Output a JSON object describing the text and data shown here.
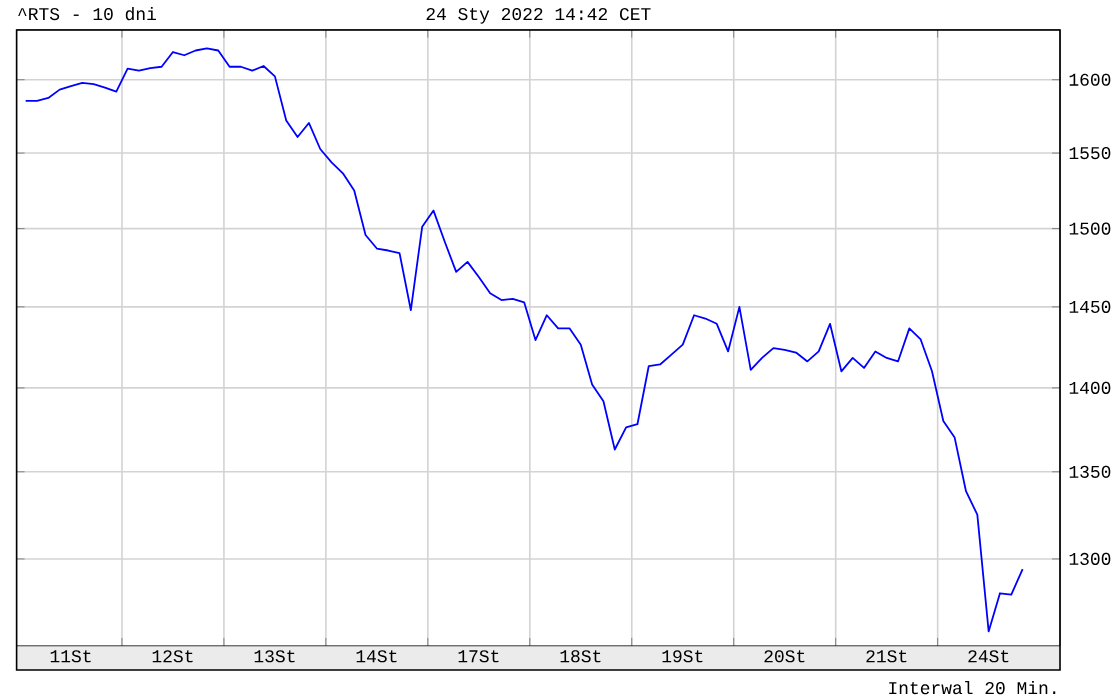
{
  "chart_data": {
    "type": "line",
    "title": "^RTS - 10 dni",
    "subtitle": "24 Sty 2022 14:42 CET",
    "annotations": [
      "Interwal 20 Min."
    ],
    "ylim": [
      1252,
      1635
    ],
    "log": "y",
    "grid": true,
    "categories": [
      null,
      null,
      null,
      null,
      "11St",
      null,
      null,
      null,
      null,
      null,
      null,
      null,
      null,
      "12St",
      null,
      null,
      null,
      null,
      null,
      null,
      null,
      null,
      "13St",
      null,
      null,
      null,
      null,
      null,
      null,
      null,
      null,
      "14St",
      null,
      null,
      null,
      null,
      null,
      null,
      null,
      null,
      "17St",
      null,
      null,
      null,
      null,
      null,
      null,
      null,
      null,
      "18St",
      null,
      null,
      null,
      null,
      null,
      null,
      null,
      null,
      "19St",
      null,
      null,
      null,
      null,
      null,
      null,
      null,
      null,
      "20St",
      null,
      null,
      null,
      null,
      null,
      null,
      null,
      null,
      "21St",
      null,
      null,
      null,
      null,
      null,
      null,
      null,
      null,
      "24St",
      null,
      null,
      null
    ],
    "yticks": [
      1300,
      1350,
      1400,
      1450,
      1500,
      1550,
      1600
    ],
    "series": [
      {
        "color": "#0000ff",
        "values": [
          1585.5,
          1585.5,
          1587.4,
          1593.2,
          1595.5,
          1597.7,
          1596.9,
          1594.6,
          1591.9,
          1607.7,
          1606.3,
          1608.1,
          1609.0,
          1619.3,
          1617.1,
          1620.3,
          1622.0,
          1620.3,
          1609.0,
          1609.0,
          1606.3,
          1609.5,
          1602.3,
          1572.0,
          1560.8,
          1570.3,
          1552.7,
          1543.8,
          1536.4,
          1525.0,
          1495.8,
          1487.2,
          1485.9,
          1484.2,
          1447.9,
          1501.3,
          1511.8,
          1491.4,
          1472.2,
          1478.6,
          1468.9,
          1458.6,
          1454.3,
          1455.1,
          1452.9,
          1429.3,
          1444.8,
          1436.6,
          1436.6,
          1426.5,
          1402.1,
          1392.0,
          1363.1,
          1376.2,
          1378.2,
          1413.4,
          1414.3,
          1420.4,
          1426.5,
          1444.8,
          1442.7,
          1439.4,
          1422.3,
          1450.0,
          1411.0,
          1418.3,
          1424.4,
          1423.2,
          1421.6,
          1416.2,
          1422.3,
          1439.4,
          1410.1,
          1418.3,
          1412.2,
          1422.3,
          1418.3,
          1416.2,
          1436.6,
          1429.7,
          1410.1,
          1380.1,
          1370.2,
          1338.7,
          1325.2,
          1259.8,
          1280.8,
          1280.1,
          1294.3
        ]
      }
    ]
  }
}
